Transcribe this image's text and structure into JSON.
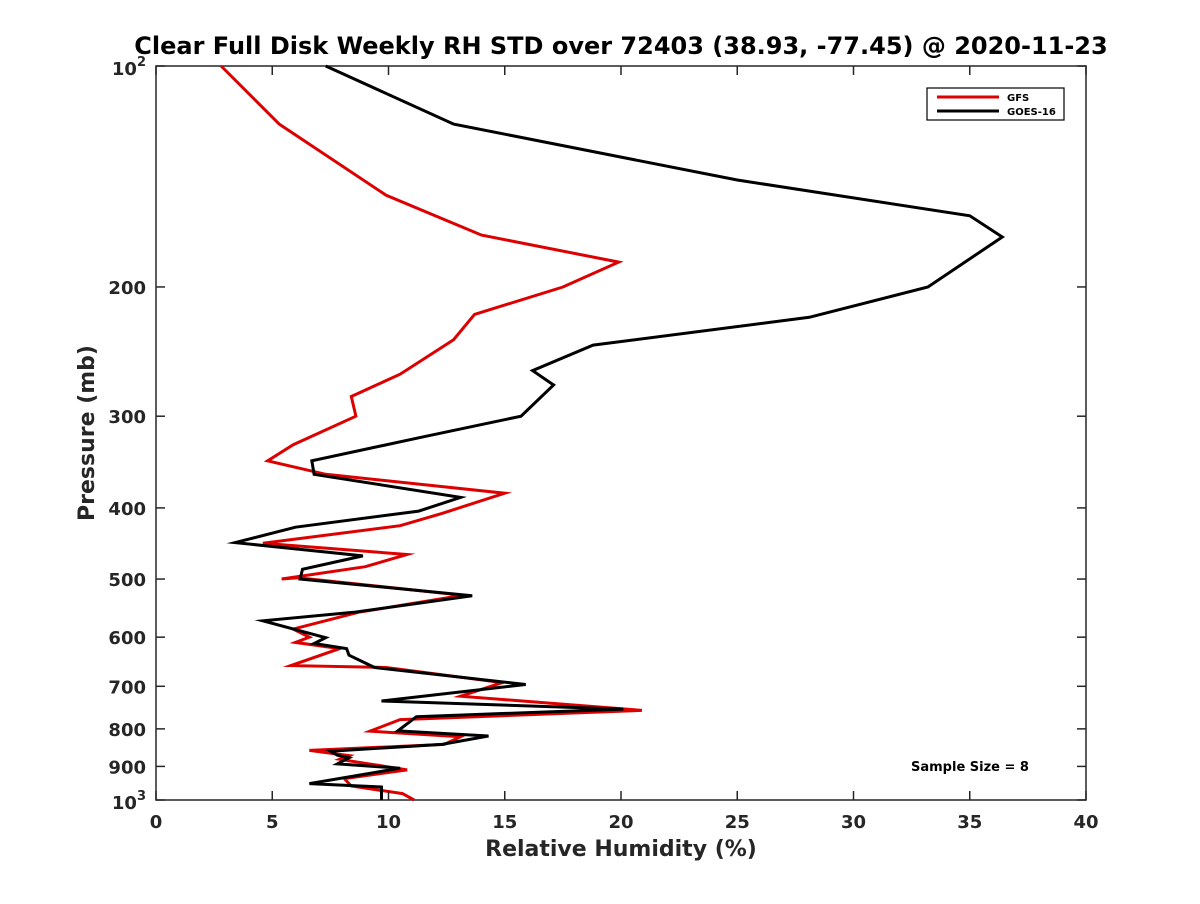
{
  "chart_data": {
    "type": "line",
    "title": "Clear Full Disk Weekly RH STD over 72403 (38.93, -77.45) @ 2020-11-23",
    "xlabel": "Relative Humidity (%)",
    "ylabel": "Pressure (mb)",
    "xlim": [
      0,
      40
    ],
    "ylim": [
      100,
      1000
    ],
    "y_scale": "log",
    "y_reversed": true,
    "xticks": [
      0,
      5,
      10,
      15,
      20,
      25,
      30,
      35,
      40
    ],
    "xtick_labels": [
      "0",
      "5",
      "10",
      "15",
      "20",
      "25",
      "30",
      "35",
      "40"
    ],
    "yticks": [
      100,
      200,
      300,
      400,
      500,
      600,
      700,
      800,
      900,
      1000
    ],
    "ytick_labels": [
      {
        "base": "10",
        "sup": "2"
      },
      {
        "base": "200",
        "sup": ""
      },
      {
        "base": "300",
        "sup": ""
      },
      {
        "base": "400",
        "sup": ""
      },
      {
        "base": "500",
        "sup": ""
      },
      {
        "base": "600",
        "sup": ""
      },
      {
        "base": "700",
        "sup": ""
      },
      {
        "base": "800",
        "sup": ""
      },
      {
        "base": "900",
        "sup": ""
      },
      {
        "base": "10",
        "sup": "3"
      }
    ],
    "grid": false,
    "legend_position": "top-right",
    "annotation": "Sample Size = 8",
    "series": [
      {
        "name": "GFS",
        "color": "#dd0000",
        "points": [
          [
            2.8,
            100
          ],
          [
            5.3,
            120
          ],
          [
            9.9,
            150
          ],
          [
            14.0,
            170
          ],
          [
            19.9,
            185
          ],
          [
            17.5,
            200
          ],
          [
            13.7,
            218
          ],
          [
            12.8,
            236
          ],
          [
            10.5,
            263
          ],
          [
            8.4,
            282
          ],
          [
            8.6,
            300
          ],
          [
            5.9,
            328
          ],
          [
            4.8,
            345
          ],
          [
            7.3,
            360
          ],
          [
            15.0,
            382
          ],
          [
            12.3,
            407
          ],
          [
            10.5,
            423
          ],
          [
            4.6,
            447
          ],
          [
            10.8,
            463
          ],
          [
            9.0,
            481
          ],
          [
            5.4,
            500
          ],
          [
            6.1,
            498
          ],
          [
            13.2,
            526
          ],
          [
            8.7,
            555
          ],
          [
            5.9,
            585
          ],
          [
            6.6,
            600
          ],
          [
            6.0,
            610
          ],
          [
            7.9,
            622
          ],
          [
            5.8,
            656
          ],
          [
            9.9,
            660
          ],
          [
            14.9,
            692
          ],
          [
            13.1,
            722
          ],
          [
            20.9,
            755
          ],
          [
            10.5,
            777
          ],
          [
            9.2,
            806
          ],
          [
            13.1,
            820
          ],
          [
            12.4,
            840
          ],
          [
            6.6,
            856
          ],
          [
            8.3,
            870
          ],
          [
            7.9,
            880
          ],
          [
            10.8,
            910
          ],
          [
            8.1,
            935
          ],
          [
            8.4,
            957
          ],
          [
            10.6,
            980
          ],
          [
            11.1,
            1000
          ]
        ]
      },
      {
        "name": "GOES-16",
        "color": "#000000",
        "points": [
          [
            7.3,
            100
          ],
          [
            12.8,
            120
          ],
          [
            25.0,
            143
          ],
          [
            35.0,
            160
          ],
          [
            36.4,
            171
          ],
          [
            33.2,
            200
          ],
          [
            28.1,
            220
          ],
          [
            18.8,
            240
          ],
          [
            16.2,
            260
          ],
          [
            17.1,
            272
          ],
          [
            15.7,
            300
          ],
          [
            11.5,
            320
          ],
          [
            6.7,
            345
          ],
          [
            6.8,
            360
          ],
          [
            13.1,
            387
          ],
          [
            11.3,
            404
          ],
          [
            6.0,
            425
          ],
          [
            3.4,
            446
          ],
          [
            8.9,
            465
          ],
          [
            6.3,
            485
          ],
          [
            6.2,
            500
          ],
          [
            13.6,
            527
          ],
          [
            8.5,
            555
          ],
          [
            4.6,
            570
          ],
          [
            7.3,
            601
          ],
          [
            6.8,
            612
          ],
          [
            8.2,
            622
          ],
          [
            8.3,
            635
          ],
          [
            9.4,
            660
          ],
          [
            15.9,
            696
          ],
          [
            9.7,
            733
          ],
          [
            20.1,
            752
          ],
          [
            11.2,
            770
          ],
          [
            10.4,
            805
          ],
          [
            14.3,
            818
          ],
          [
            12.3,
            840
          ],
          [
            7.5,
            858
          ],
          [
            7.8,
            869
          ],
          [
            8.3,
            876
          ],
          [
            7.8,
            893
          ],
          [
            10.5,
            905
          ],
          [
            6.6,
            950
          ],
          [
            9.7,
            960
          ],
          [
            9.7,
            1000
          ]
        ]
      }
    ]
  }
}
